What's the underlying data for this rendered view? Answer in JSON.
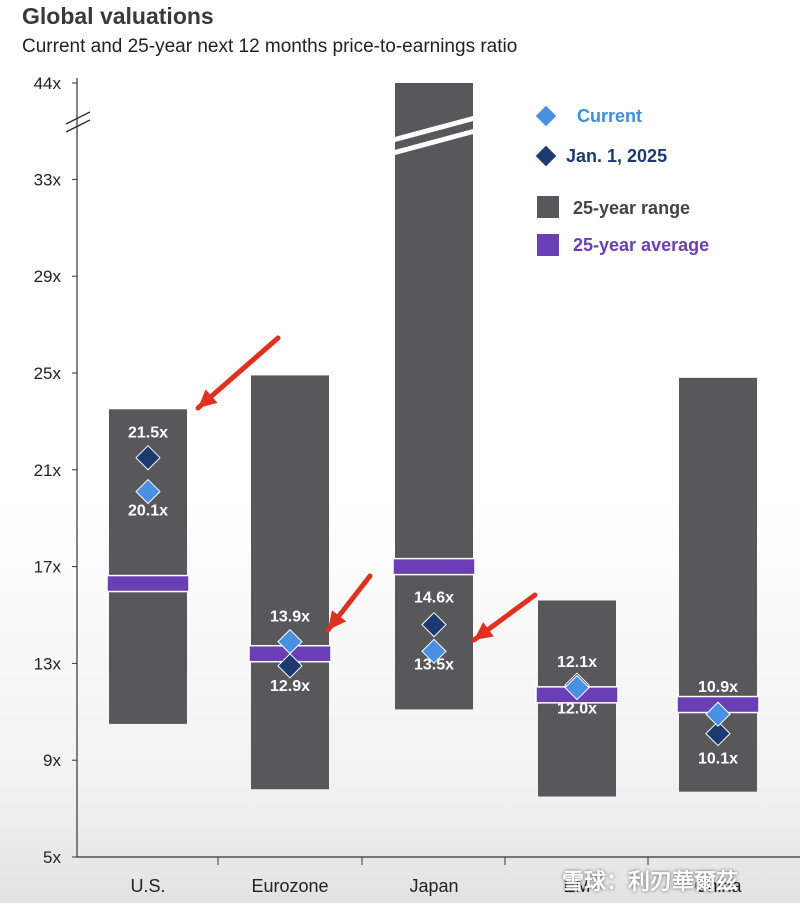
{
  "title": "Global valuations",
  "subtitle": "Current and 25-year next 12 months price-to-earnings ratio",
  "watermark": "雪球：利刃華爾茲",
  "colors": {
    "range": "#58585a",
    "average": "#6a3fb5",
    "current": "#4a90e2",
    "jan1": "#1c3a70",
    "legend_current_text": "#3d8fd6",
    "legend_jan_text": "#1c3a70",
    "legend_range_text": "#444444",
    "legend_avg_text": "#6a3fb5",
    "arrow": "#e03020"
  },
  "chart_data": {
    "type": "range-dot",
    "title": "Global valuations",
    "subtitle": "Current and 25-year next 12 months price-to-earnings ratio",
    "categories": [
      "U.S.",
      "Eurozone",
      "Japan",
      "EM",
      "China"
    ],
    "y_ticks": [
      "5x",
      "9x",
      "13x",
      "17x",
      "21x",
      "25x",
      "29x",
      "33x",
      "44x"
    ],
    "y_tick_values": [
      5,
      9,
      13,
      17,
      21,
      25,
      29,
      33,
      44
    ],
    "axis_break": true,
    "range_low": [
      10.5,
      7.8,
      11.1,
      7.5,
      7.7
    ],
    "range_high": [
      23.5,
      24.9,
      44,
      15.6,
      24.8
    ],
    "range_truncated": [
      false,
      false,
      true,
      false,
      false
    ],
    "average": [
      16.3,
      13.4,
      17.0,
      11.7,
      11.3
    ],
    "current": [
      20.1,
      13.9,
      13.5,
      12.0,
      10.9
    ],
    "jan_1_2025": [
      21.5,
      12.9,
      14.6,
      12.1,
      10.1
    ],
    "label_above": [
      "21.5x",
      "13.9x",
      "14.6x",
      "12.1x",
      "10.9x"
    ],
    "label_below": [
      "20.1x",
      "12.9x",
      "13.5x",
      "12.0x",
      "10.1x"
    ],
    "legend": {
      "placement": "top-right",
      "entries": [
        "Current",
        "Jan. 1, 2025",
        "25-year range",
        "25-year average"
      ]
    },
    "annotations": "red arrows pointing at U.S., Eurozone and Japan"
  }
}
